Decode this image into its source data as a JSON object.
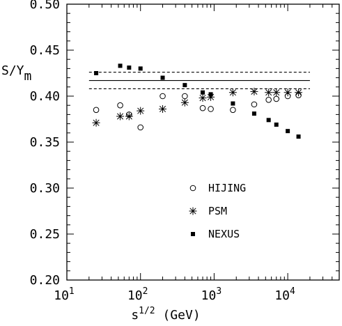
{
  "chart_data": {
    "type": "scatter",
    "xscale": "log",
    "xlim": [
      10,
      50000
    ],
    "ylim": [
      0.2,
      0.5
    ],
    "xlabel": "s^{1/2} (GeV)",
    "ylabel": "S/Y_m",
    "xticks": [
      {
        "value": 10,
        "base": "10",
        "exp": "1"
      },
      {
        "value": 100,
        "base": "10",
        "exp": "2"
      },
      {
        "value": 1000,
        "base": "10",
        "exp": "3"
      },
      {
        "value": 10000,
        "base": "10",
        "exp": "4"
      }
    ],
    "yticks": [
      0.2,
      0.25,
      0.3,
      0.35,
      0.4,
      0.45,
      0.5
    ],
    "ytick_labels": [
      "0.20",
      "0.25",
      "0.30",
      "0.35",
      "0.40",
      "0.45",
      "0.50"
    ],
    "reference_lines": [
      {
        "y": 0.417,
        "style": "solid"
      },
      {
        "y": 0.426,
        "style": "dashed"
      },
      {
        "y": 0.408,
        "style": "dashed"
      }
    ],
    "reference_line_xrange": [
      20,
      20000
    ],
    "legend_position": "center-right",
    "series": [
      {
        "name": "HIJING",
        "marker": "open-circle",
        "points": [
          {
            "x": 25,
            "y": 0.385
          },
          {
            "x": 53,
            "y": 0.39
          },
          {
            "x": 70,
            "y": 0.38
          },
          {
            "x": 100,
            "y": 0.366
          },
          {
            "x": 200,
            "y": 0.4
          },
          {
            "x": 400,
            "y": 0.4
          },
          {
            "x": 700,
            "y": 0.387
          },
          {
            "x": 900,
            "y": 0.386
          },
          {
            "x": 1800,
            "y": 0.385
          },
          {
            "x": 3500,
            "y": 0.391
          },
          {
            "x": 5500,
            "y": 0.396
          },
          {
            "x": 7000,
            "y": 0.397
          },
          {
            "x": 10000,
            "y": 0.4
          },
          {
            "x": 14000,
            "y": 0.401
          }
        ]
      },
      {
        "name": "PSM",
        "marker": "asterisk",
        "points": [
          {
            "x": 25,
            "y": 0.371
          },
          {
            "x": 53,
            "y": 0.378
          },
          {
            "x": 70,
            "y": 0.378
          },
          {
            "x": 100,
            "y": 0.384
          },
          {
            "x": 200,
            "y": 0.386
          },
          {
            "x": 400,
            "y": 0.393
          },
          {
            "x": 700,
            "y": 0.398
          },
          {
            "x": 900,
            "y": 0.399
          },
          {
            "x": 1800,
            "y": 0.404
          },
          {
            "x": 3500,
            "y": 0.405
          },
          {
            "x": 5500,
            "y": 0.404
          },
          {
            "x": 7000,
            "y": 0.404
          },
          {
            "x": 10000,
            "y": 0.404
          },
          {
            "x": 14000,
            "y": 0.404
          }
        ]
      },
      {
        "name": "NEXUS",
        "marker": "filled-square",
        "points": [
          {
            "x": 25,
            "y": 0.425
          },
          {
            "x": 53,
            "y": 0.433
          },
          {
            "x": 70,
            "y": 0.431
          },
          {
            "x": 100,
            "y": 0.43
          },
          {
            "x": 200,
            "y": 0.42
          },
          {
            "x": 400,
            "y": 0.412
          },
          {
            "x": 700,
            "y": 0.404
          },
          {
            "x": 900,
            "y": 0.402
          },
          {
            "x": 1800,
            "y": 0.392
          },
          {
            "x": 3500,
            "y": 0.381
          },
          {
            "x": 5500,
            "y": 0.374
          },
          {
            "x": 7000,
            "y": 0.369
          },
          {
            "x": 10000,
            "y": 0.362
          },
          {
            "x": 14000,
            "y": 0.356
          }
        ]
      }
    ]
  }
}
